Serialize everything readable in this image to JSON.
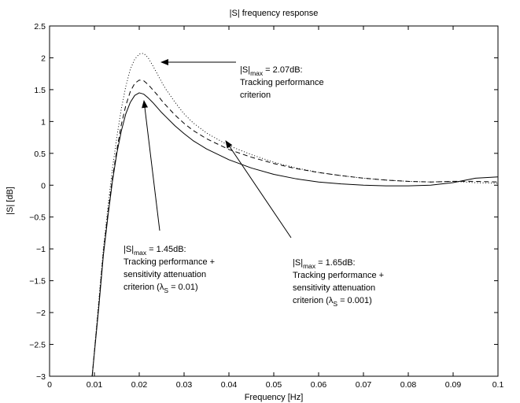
{
  "chart_data": {
    "type": "line",
    "title": "|S| frequency response",
    "xlabel": "Frequency [Hz]",
    "ylabel": "|S| [dB]",
    "xlim": [
      0,
      0.1
    ],
    "ylim": [
      -3,
      2.5
    ],
    "grid": false,
    "x_ticks": [
      0,
      0.01,
      0.02,
      0.03,
      0.04,
      0.05,
      0.06,
      0.07,
      0.08,
      0.09,
      0.1
    ],
    "x_tick_labels": [
      "0",
      "0.01",
      "0.02",
      "0.03",
      "0.04",
      "0.05",
      "0.06",
      "0.07",
      "0.08",
      "0.09",
      "0.1"
    ],
    "y_ticks": [
      -3,
      -2.5,
      -2,
      -1.5,
      -1,
      -0.5,
      0,
      0.5,
      1,
      1.5,
      2,
      2.5
    ],
    "y_tick_labels": [
      "−3",
      "−2.5",
      "−2",
      "−1.5",
      "−1",
      "−0.5",
      "0",
      "0.5",
      "1",
      "1.5",
      "2",
      "2.5"
    ],
    "series": [
      {
        "style": "dotted",
        "x": [
          0.0095,
          0.011,
          0.012,
          0.013,
          0.014,
          0.015,
          0.016,
          0.017,
          0.018,
          0.019,
          0.02,
          0.021,
          0.022,
          0.023,
          0.024,
          0.025,
          0.026,
          0.028,
          0.03,
          0.032,
          0.035,
          0.04,
          0.045,
          0.05,
          0.055,
          0.06,
          0.065,
          0.07,
          0.075,
          0.08,
          0.085,
          0.09,
          0.095,
          0.1
        ],
        "y": [
          -3.0,
          -1.8,
          -1.0,
          -0.35,
          0.25,
          0.75,
          1.2,
          1.55,
          1.82,
          1.98,
          2.06,
          2.07,
          2.0,
          1.88,
          1.75,
          1.62,
          1.5,
          1.3,
          1.12,
          0.98,
          0.82,
          0.62,
          0.48,
          0.36,
          0.27,
          0.2,
          0.15,
          0.11,
          0.08,
          0.06,
          0.05,
          0.06,
          0.04,
          0.03
        ]
      },
      {
        "style": "dashed",
        "x": [
          0.0095,
          0.011,
          0.012,
          0.013,
          0.014,
          0.015,
          0.016,
          0.017,
          0.018,
          0.019,
          0.02,
          0.021,
          0.022,
          0.023,
          0.024,
          0.025,
          0.026,
          0.028,
          0.03,
          0.032,
          0.035,
          0.04,
          0.045,
          0.05,
          0.055,
          0.06,
          0.065,
          0.07,
          0.075,
          0.08,
          0.085,
          0.09,
          0.095,
          0.1
        ],
        "y": [
          -3.0,
          -1.85,
          -1.05,
          -0.45,
          0.1,
          0.55,
          0.95,
          1.25,
          1.47,
          1.6,
          1.65,
          1.64,
          1.58,
          1.5,
          1.42,
          1.33,
          1.25,
          1.1,
          0.97,
          0.86,
          0.73,
          0.56,
          0.44,
          0.34,
          0.26,
          0.2,
          0.15,
          0.11,
          0.08,
          0.06,
          0.05,
          0.06,
          0.06,
          0.05
        ]
      },
      {
        "style": "solid",
        "x": [
          0.0095,
          0.011,
          0.012,
          0.013,
          0.014,
          0.015,
          0.016,
          0.017,
          0.018,
          0.019,
          0.02,
          0.021,
          0.022,
          0.023,
          0.024,
          0.025,
          0.026,
          0.028,
          0.03,
          0.032,
          0.035,
          0.04,
          0.045,
          0.05,
          0.055,
          0.06,
          0.065,
          0.07,
          0.075,
          0.08,
          0.085,
          0.09,
          0.095,
          0.1
        ],
        "y": [
          -3.0,
          -1.9,
          -1.1,
          -0.5,
          0.05,
          0.5,
          0.85,
          1.12,
          1.3,
          1.41,
          1.45,
          1.43,
          1.37,
          1.3,
          1.22,
          1.14,
          1.07,
          0.93,
          0.81,
          0.7,
          0.57,
          0.4,
          0.27,
          0.17,
          0.1,
          0.05,
          0.02,
          0.0,
          -0.01,
          -0.01,
          0.0,
          0.04,
          0.11,
          0.13
        ]
      }
    ],
    "annotations": [
      {
        "main": "|S|",
        "sub": "max",
        "rest": " = 2.07dB:",
        "line2": "Tracking performance",
        "line3": "criterion",
        "points_to": [
          0.021,
          2.07
        ]
      },
      {
        "main": "|S|",
        "sub": "max",
        "rest": " = 1.45dB:",
        "line2": "Tracking performance +",
        "line3": "sensitivity attenuation",
        "line4_a": "criterion (λ",
        "line4_sub": "S",
        "line4_b": " = 0.01)",
        "points_to": [
          0.0195,
          1.42
        ]
      },
      {
        "main": "|S|",
        "sub": "max",
        "rest": " = 1.65dB:",
        "line2": "Tracking performance +",
        "line3": "sensitivity attenuation",
        "line4_a": "criterion (λ",
        "line4_sub": "S",
        "line4_b": " = 0.001)",
        "points_to": [
          0.0372,
          0.98
        ]
      }
    ]
  }
}
